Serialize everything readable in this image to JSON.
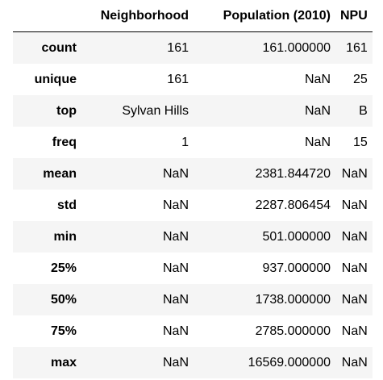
{
  "table": {
    "corner": "",
    "columns": [
      "Neighborhood",
      "Population (2010)",
      "NPU"
    ],
    "rows": [
      {
        "index": "count",
        "cells": [
          "161",
          "161.000000",
          "161"
        ]
      },
      {
        "index": "unique",
        "cells": [
          "161",
          "NaN",
          "25"
        ]
      },
      {
        "index": "top",
        "cells": [
          "Sylvan Hills",
          "NaN",
          "B"
        ]
      },
      {
        "index": "freq",
        "cells": [
          "1",
          "NaN",
          "15"
        ]
      },
      {
        "index": "mean",
        "cells": [
          "NaN",
          "2381.844720",
          "NaN"
        ]
      },
      {
        "index": "std",
        "cells": [
          "NaN",
          "2287.806454",
          "NaN"
        ]
      },
      {
        "index": "min",
        "cells": [
          "NaN",
          "501.000000",
          "NaN"
        ]
      },
      {
        "index": "25%",
        "cells": [
          "NaN",
          "937.000000",
          "NaN"
        ]
      },
      {
        "index": "50%",
        "cells": [
          "NaN",
          "1738.000000",
          "NaN"
        ]
      },
      {
        "index": "75%",
        "cells": [
          "NaN",
          "2785.000000",
          "NaN"
        ]
      },
      {
        "index": "max",
        "cells": [
          "NaN",
          "16569.000000",
          "NaN"
        ]
      }
    ]
  },
  "colors": {
    "odd_row_background": "#f5f5f5",
    "even_row_background": "#ffffff",
    "header_rule": "#000000",
    "text": "#000000"
  }
}
